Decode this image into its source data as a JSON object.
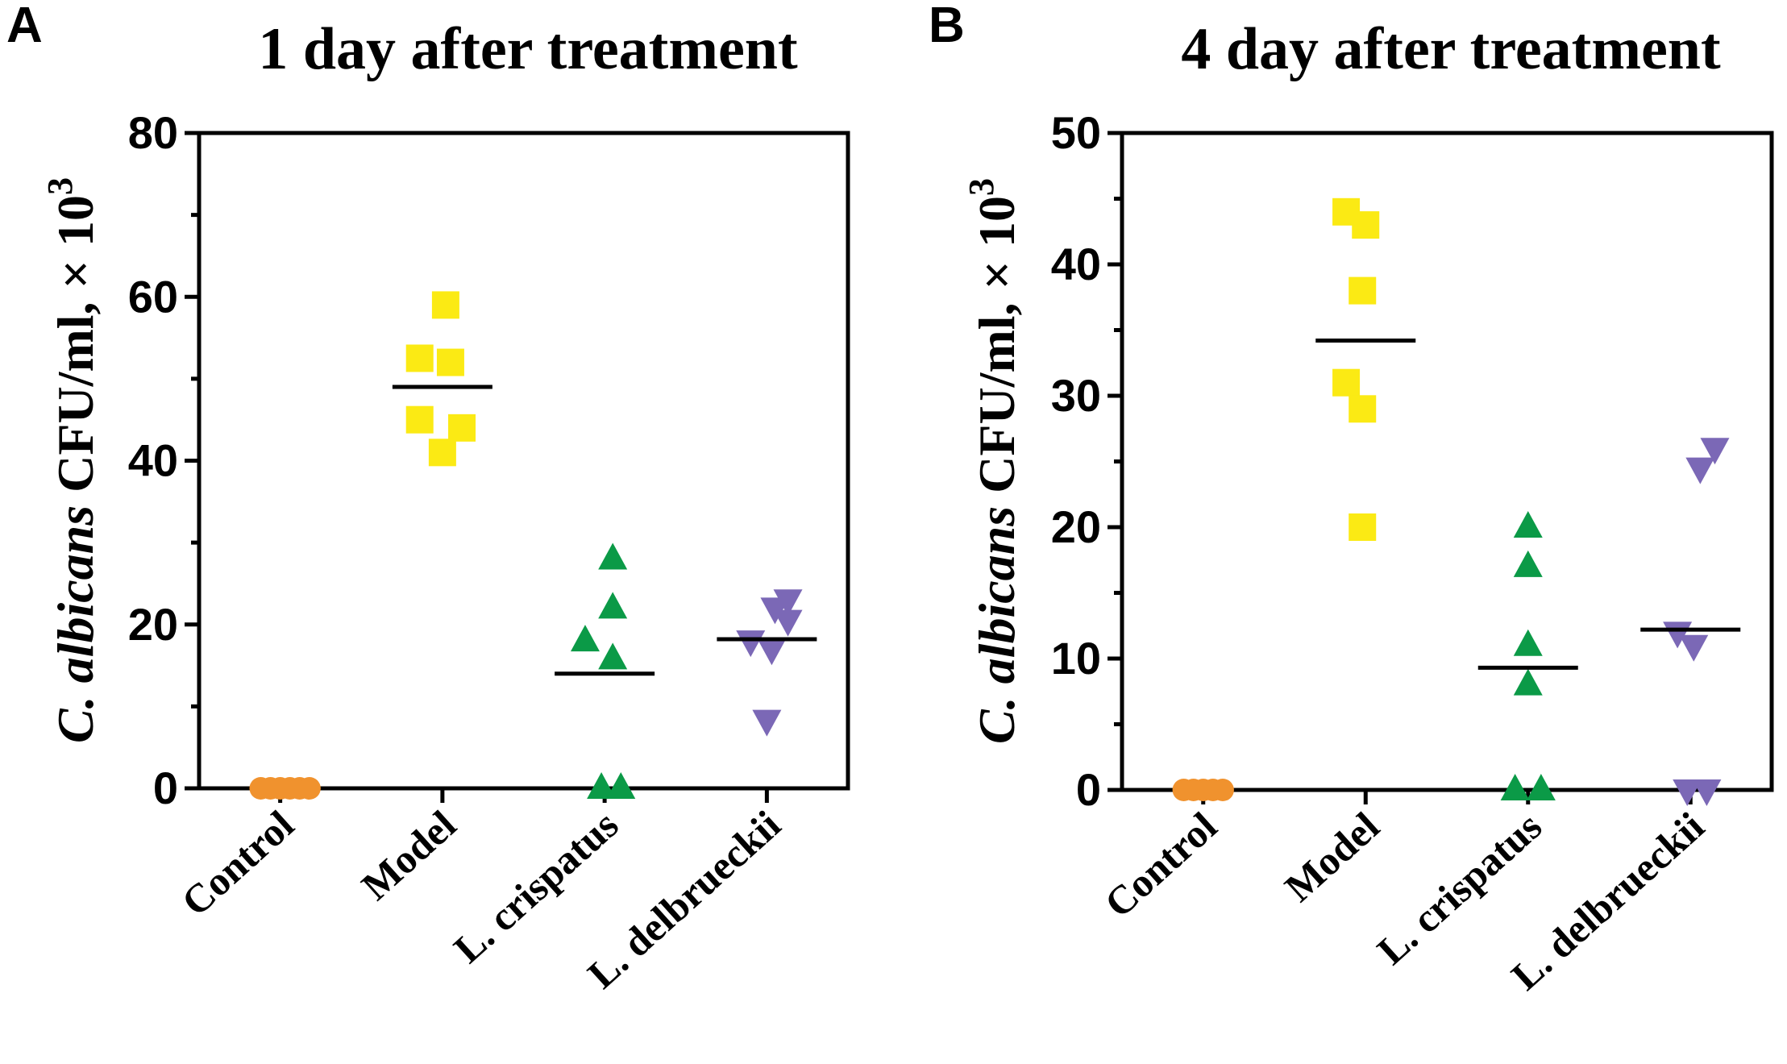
{
  "figure": {
    "panels": [
      {
        "letter": "A",
        "title": "1 day after treatment"
      },
      {
        "letter": "B",
        "title": "4 day after treatment"
      }
    ]
  },
  "chart_data": [
    {
      "type": "scatter",
      "panel": "A",
      "title": "1 day after treatment",
      "ylabel_italic": "C. albicans",
      "ylabel_rest": " CFU/ml, × 10",
      "ylabel_exp": "3",
      "ylim": [
        0,
        80
      ],
      "yticks": [
        0,
        20,
        40,
        60,
        80
      ],
      "categories": [
        "Control",
        "Model",
        "L. crispatus",
        "L. delbrueckii"
      ],
      "series": [
        {
          "name": "Control",
          "marker": "circle",
          "color": "#f0922e",
          "mean": 0,
          "points": [
            [
              -0.12,
              0
            ],
            [
              -0.06,
              0
            ],
            [
              0,
              0
            ],
            [
              0.06,
              0
            ],
            [
              0.12,
              0
            ],
            [
              0.18,
              0
            ]
          ]
        },
        {
          "name": "Model",
          "marker": "square",
          "color": "#fbea14",
          "mean": 49,
          "points": [
            [
              0.02,
              59
            ],
            [
              -0.14,
              52.5
            ],
            [
              0.05,
              52
            ],
            [
              -0.14,
              45
            ],
            [
              0.12,
              44
            ],
            [
              0,
              41
            ]
          ]
        },
        {
          "name": "L. crispatus",
          "marker": "triangle-up",
          "color": "#0b9a47",
          "mean": 14,
          "points": [
            [
              0.05,
              28
            ],
            [
              0.05,
              22
            ],
            [
              -0.12,
              18
            ],
            [
              0.05,
              15.8
            ],
            [
              -0.02,
              0
            ],
            [
              0.1,
              0
            ]
          ]
        },
        {
          "name": "L. delbrueckii",
          "marker": "triangle-down",
          "color": "#7b68b6",
          "mean": 18.2,
          "points": [
            [
              0.13,
              23
            ],
            [
              0.05,
              22
            ],
            [
              0.13,
              20.5
            ],
            [
              -0.1,
              18
            ],
            [
              0.03,
              17
            ],
            [
              0,
              8.3
            ]
          ]
        }
      ]
    },
    {
      "type": "scatter",
      "panel": "B",
      "title": "4 day after treatment",
      "ylabel_italic": "C. albicans",
      "ylabel_rest": " CFU/ml, × 10",
      "ylabel_exp": "3",
      "ylim": [
        0,
        50
      ],
      "yticks": [
        0,
        10,
        20,
        30,
        40,
        50
      ],
      "categories": [
        "Control",
        "Model",
        "L. crispatus",
        "L. delbrueckii"
      ],
      "series": [
        {
          "name": "Control",
          "marker": "circle",
          "color": "#f0922e",
          "mean": 0,
          "points": [
            [
              -0.12,
              0
            ],
            [
              -0.06,
              0
            ],
            [
              0,
              0
            ],
            [
              0.06,
              0
            ],
            [
              0.12,
              0
            ]
          ]
        },
        {
          "name": "Model",
          "marker": "square",
          "color": "#fbea14",
          "mean": 34.2,
          "points": [
            [
              -0.12,
              44
            ],
            [
              0,
              43
            ],
            [
              -0.02,
              38
            ],
            [
              -0.12,
              31
            ],
            [
              -0.02,
              29
            ],
            [
              -0.02,
              20
            ]
          ]
        },
        {
          "name": "L. crispatus",
          "marker": "triangle-up",
          "color": "#0b9a47",
          "mean": 9.3,
          "points": [
            [
              0,
              20
            ],
            [
              0,
              17
            ],
            [
              0,
              11
            ],
            [
              0,
              8
            ],
            [
              -0.08,
              0
            ],
            [
              0.08,
              0
            ]
          ]
        },
        {
          "name": "L. delbrueckii",
          "marker": "triangle-down",
          "color": "#7b68b6",
          "mean": 12.2,
          "points": [
            [
              0.15,
              26
            ],
            [
              0.06,
              24.5
            ],
            [
              -0.08,
              12
            ],
            [
              0.02,
              11
            ],
            [
              -0.02,
              0
            ],
            [
              0.1,
              0
            ]
          ]
        }
      ]
    }
  ]
}
